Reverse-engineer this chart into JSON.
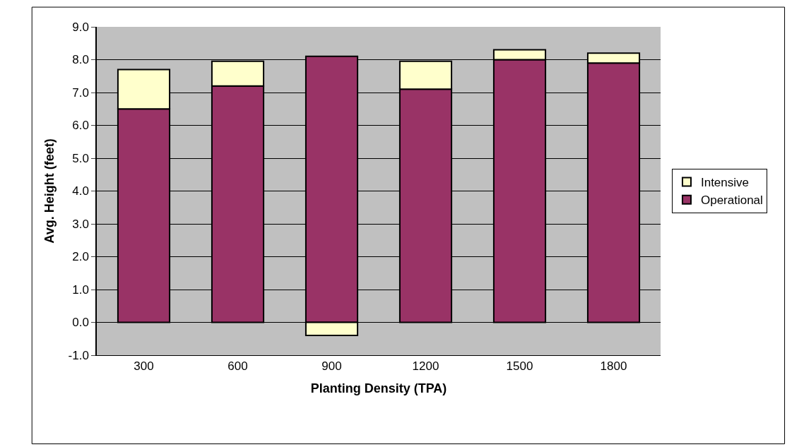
{
  "chart_data": {
    "type": "bar",
    "stacked": true,
    "xlabel": "Planting Density (TPA)",
    "ylabel": "Avg. Height (feet)",
    "categories": [
      "300",
      "600",
      "900",
      "1200",
      "1500",
      "1800"
    ],
    "series": [
      {
        "name": "Operational",
        "color": "#993366",
        "values": [
          6.5,
          7.2,
          8.1,
          7.1,
          8.0,
          7.9
        ]
      },
      {
        "name": "Intensive",
        "color": "#ffffcc",
        "values": [
          1.2,
          0.75,
          -0.4,
          0.85,
          0.3,
          0.3
        ]
      }
    ],
    "ylim": [
      -1,
      9
    ],
    "yticks": [
      {
        "value": -1,
        "label": "-1.0"
      },
      {
        "value": 0,
        "label": "0.0"
      },
      {
        "value": 1,
        "label": "1.0"
      },
      {
        "value": 2,
        "label": "2.0"
      },
      {
        "value": 3,
        "label": "3.0"
      },
      {
        "value": 4,
        "label": "4.0"
      },
      {
        "value": 5,
        "label": "5.0"
      },
      {
        "value": 6,
        "label": "6.0"
      },
      {
        "value": 7,
        "label": "7.0"
      },
      {
        "value": 8,
        "label": "8.0"
      },
      {
        "value": 9,
        "label": "9.0"
      }
    ],
    "grid": "y",
    "legend": "right"
  }
}
